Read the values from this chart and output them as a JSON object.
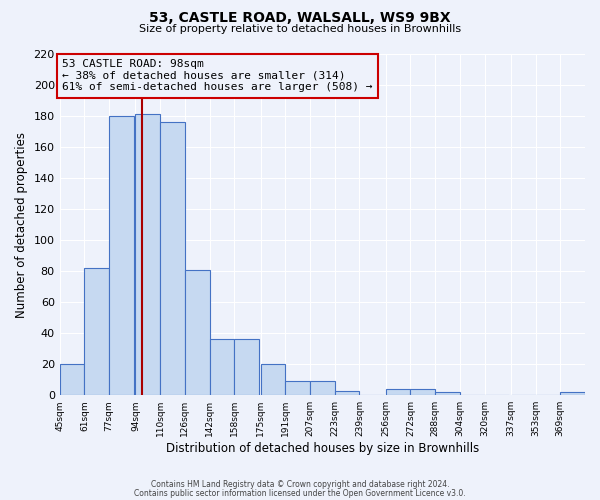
{
  "title_line1": "53, CASTLE ROAD, WALSALL, WS9 9BX",
  "title_line2": "Size of property relative to detached houses in Brownhills",
  "xlabel": "Distribution of detached houses by size in Brownhills",
  "ylabel": "Number of detached properties",
  "bin_labels": [
    "45sqm",
    "61sqm",
    "77sqm",
    "94sqm",
    "110sqm",
    "126sqm",
    "142sqm",
    "158sqm",
    "175sqm",
    "191sqm",
    "207sqm",
    "223sqm",
    "239sqm",
    "256sqm",
    "272sqm",
    "288sqm",
    "304sqm",
    "320sqm",
    "337sqm",
    "353sqm",
    "369sqm"
  ],
  "bar_heights": [
    20,
    82,
    180,
    181,
    176,
    81,
    36,
    36,
    20,
    9,
    9,
    3,
    0,
    4,
    4,
    2,
    0,
    0,
    0,
    0,
    2
  ],
  "bar_color": "#c6d9f1",
  "bar_edge_color": "#4472c4",
  "ylim": [
    0,
    220
  ],
  "yticks": [
    0,
    20,
    40,
    60,
    80,
    100,
    120,
    140,
    160,
    180,
    200,
    220
  ],
  "marker_value": 98,
  "marker_color": "#aa0000",
  "annotation_box_line1": "53 CASTLE ROAD: 98sqm",
  "annotation_box_line2": "← 38% of detached houses are smaller (314)",
  "annotation_box_line3": "61% of semi-detached houses are larger (508) →",
  "annotation_box_color": "#cc0000",
  "footer_line1": "Contains HM Land Registry data © Crown copyright and database right 2024.",
  "footer_line2": "Contains public sector information licensed under the Open Government Licence v3.0.",
  "background_color": "#eef2fb",
  "grid_color": "#ffffff",
  "bin_width": 16
}
